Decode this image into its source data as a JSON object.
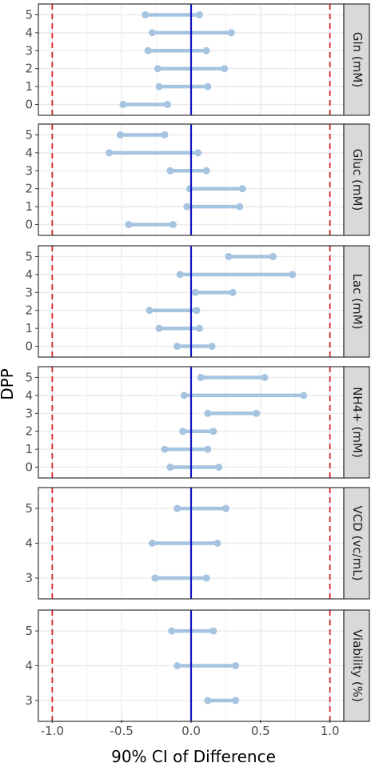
{
  "chart_data": {
    "type": "dumbbell",
    "xlabel": "90% CI of Difference",
    "ylabel": "DPP",
    "xlim": [
      -1.1,
      1.1
    ],
    "x_ticks": [
      "-1.0",
      "-0.5",
      "0.0",
      "0.5",
      "1.0"
    ],
    "x_tick_values": [
      -1.0,
      -0.5,
      0.0,
      0.5,
      1.0
    ],
    "reference_lines": {
      "zero": 0.0,
      "bounds": [
        -1.0,
        1.0
      ]
    },
    "colors": {
      "interval": "#a6c4e0",
      "zero_line": "#1414c8",
      "bound_line": "#d62020",
      "strip_bg": "#d9d9d9",
      "grid": "#ebebeb"
    },
    "grid": true,
    "panels": [
      {
        "label": "Gln (mM)",
        "dpp": [
          "0",
          "1",
          "2",
          "3",
          "4",
          "5"
        ],
        "intervals": [
          {
            "dpp": "0",
            "low": -0.49,
            "high": -0.17
          },
          {
            "dpp": "1",
            "low": -0.23,
            "high": 0.12
          },
          {
            "dpp": "2",
            "low": -0.24,
            "high": 0.24
          },
          {
            "dpp": "3",
            "low": -0.31,
            "high": 0.11
          },
          {
            "dpp": "4",
            "low": -0.28,
            "high": 0.29
          },
          {
            "dpp": "5",
            "low": -0.33,
            "high": 0.06
          }
        ]
      },
      {
        "label": "Gluc (mM)",
        "dpp": [
          "0",
          "1",
          "2",
          "3",
          "4",
          "5"
        ],
        "intervals": [
          {
            "dpp": "0",
            "low": -0.45,
            "high": -0.13
          },
          {
            "dpp": "1",
            "low": -0.03,
            "high": 0.35
          },
          {
            "dpp": "2",
            "low": -0.01,
            "high": 0.37
          },
          {
            "dpp": "3",
            "low": -0.15,
            "high": 0.11
          },
          {
            "dpp": "4",
            "low": -0.59,
            "high": 0.05
          },
          {
            "dpp": "5",
            "low": -0.51,
            "high": -0.19
          }
        ]
      },
      {
        "label": "Lac (mM)",
        "dpp": [
          "0",
          "1",
          "2",
          "3",
          "4",
          "5"
        ],
        "intervals": [
          {
            "dpp": "0",
            "low": -0.1,
            "high": 0.15
          },
          {
            "dpp": "1",
            "low": -0.23,
            "high": 0.06
          },
          {
            "dpp": "2",
            "low": -0.3,
            "high": 0.04
          },
          {
            "dpp": "3",
            "low": 0.03,
            "high": 0.3
          },
          {
            "dpp": "4",
            "low": -0.08,
            "high": 0.73
          },
          {
            "dpp": "5",
            "low": 0.27,
            "high": 0.59
          }
        ]
      },
      {
        "label": "NH4+ (mM)",
        "dpp": [
          "0",
          "1",
          "2",
          "3",
          "4",
          "5"
        ],
        "intervals": [
          {
            "dpp": "0",
            "low": -0.15,
            "high": 0.2
          },
          {
            "dpp": "1",
            "low": -0.19,
            "high": 0.12
          },
          {
            "dpp": "2",
            "low": -0.06,
            "high": 0.16
          },
          {
            "dpp": "3",
            "low": 0.12,
            "high": 0.47
          },
          {
            "dpp": "4",
            "low": -0.05,
            "high": 0.81
          },
          {
            "dpp": "5",
            "low": 0.07,
            "high": 0.53
          }
        ]
      },
      {
        "label": "VCD (vc/mL)",
        "dpp": [
          "3",
          "4",
          "5"
        ],
        "intervals": [
          {
            "dpp": "3",
            "low": -0.26,
            "high": 0.11
          },
          {
            "dpp": "4",
            "low": -0.28,
            "high": 0.19
          },
          {
            "dpp": "5",
            "low": -0.1,
            "high": 0.25
          }
        ]
      },
      {
        "label": "Viability (%)",
        "dpp": [
          "3",
          "4",
          "5"
        ],
        "intervals": [
          {
            "dpp": "3",
            "low": 0.12,
            "high": 0.32
          },
          {
            "dpp": "4",
            "low": -0.1,
            "high": 0.32
          },
          {
            "dpp": "5",
            "low": -0.14,
            "high": 0.16
          }
        ]
      }
    ]
  }
}
